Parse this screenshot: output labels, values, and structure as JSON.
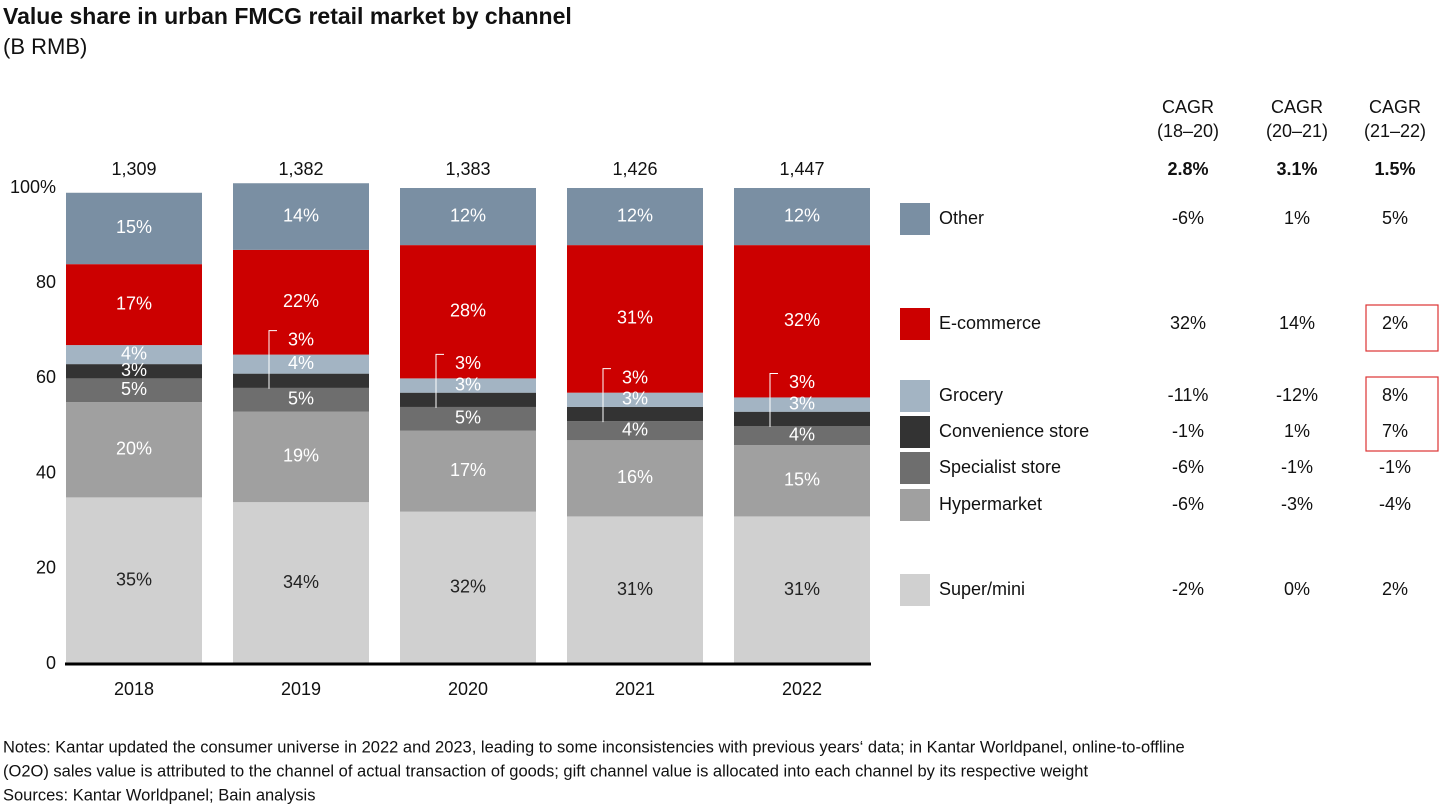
{
  "chart_data": {
    "type": "stacked_bar",
    "title": "Value share in urban FMCG retail market by channel",
    "subtitle": "(B RMB)",
    "categories": [
      "2018",
      "2019",
      "2020",
      "2021",
      "2022"
    ],
    "totals": {
      "values": [
        1309,
        1382,
        1383,
        1426,
        1447
      ],
      "value_labels": [
        "1,309",
        "1,382",
        "1,383",
        "1,426",
        "1,447"
      ]
    },
    "series": [
      {
        "name": "Super/mini",
        "color": "#d0d0d0",
        "values": [
          35,
          34,
          32,
          31,
          31
        ],
        "value_labels": [
          "35%",
          "34%",
          "32%",
          "31%",
          "31%"
        ]
      },
      {
        "name": "Hypermarket",
        "color": "#a0a0a0",
        "values": [
          20,
          19,
          17,
          16,
          15
        ],
        "value_labels": [
          "20%",
          "19%",
          "17%",
          "16%",
          "15%"
        ]
      },
      {
        "name": "Specialist store",
        "color": "#6e6e6e",
        "values": [
          5,
          5,
          5,
          4,
          4
        ],
        "value_labels": [
          "5%",
          "5%",
          "5%",
          "4%",
          "4%"
        ]
      },
      {
        "name": "Convenience store",
        "color": "#333333",
        "values": [
          3,
          3,
          3,
          3,
          3
        ],
        "value_labels": [
          "3%",
          "3%",
          "3%",
          "3%",
          "3%"
        ]
      },
      {
        "name": "Grocery",
        "color": "#a3b4c3",
        "values": [
          4,
          4,
          3,
          3,
          3
        ],
        "value_labels": [
          "4%",
          "4%",
          "3%",
          "3%",
          "3%"
        ]
      },
      {
        "name": "E-commerce",
        "color": "#cc0000",
        "values": [
          17,
          22,
          28,
          31,
          32
        ],
        "value_labels": [
          "17%",
          "22%",
          "28%",
          "31%",
          "32%"
        ]
      },
      {
        "name": "Other",
        "color": "#7a8fa3",
        "values": [
          15,
          14,
          12,
          12,
          12
        ],
        "value_labels": [
          "15%",
          "14%",
          "12%",
          "12%",
          "12%"
        ]
      }
    ],
    "ylim": [
      0,
      100
    ],
    "yticks": [
      0,
      20,
      40,
      60,
      80,
      {
        "value": 100,
        "label": "100%"
      }
    ],
    "cagr_table": {
      "headers": [
        [
          "CAGR",
          "(18–20)"
        ],
        [
          "CAGR",
          "(20–21)"
        ],
        [
          "CAGR",
          "(21–22)"
        ]
      ],
      "total_row": [
        "2.8%",
        "3.1%",
        "1.5%"
      ],
      "rows": [
        [
          "-2%",
          "0%",
          "2%"
        ],
        [
          "-6%",
          "-3%",
          "-4%"
        ],
        [
          "-6%",
          "-1%",
          "-1%"
        ],
        [
          "-1%",
          "1%",
          "7%"
        ],
        [
          "-11%",
          "-12%",
          "8%"
        ],
        [
          "32%",
          "14%",
          "2%"
        ],
        [
          "-6%",
          "1%",
          "5%"
        ]
      ]
    },
    "notes": [
      "Notes: Kantar updated the consumer universe in 2022 and 2023, leading to some inconsistencies with previous years‘ data; in Kantar Worldpanel, online-to-offline",
      "(O2O) sales value is attributed to the channel of actual transaction of goods; gift channel value is allocated into each channel by its respective weight",
      "Sources: Kantar Worldpanel; Bain analysis"
    ]
  }
}
